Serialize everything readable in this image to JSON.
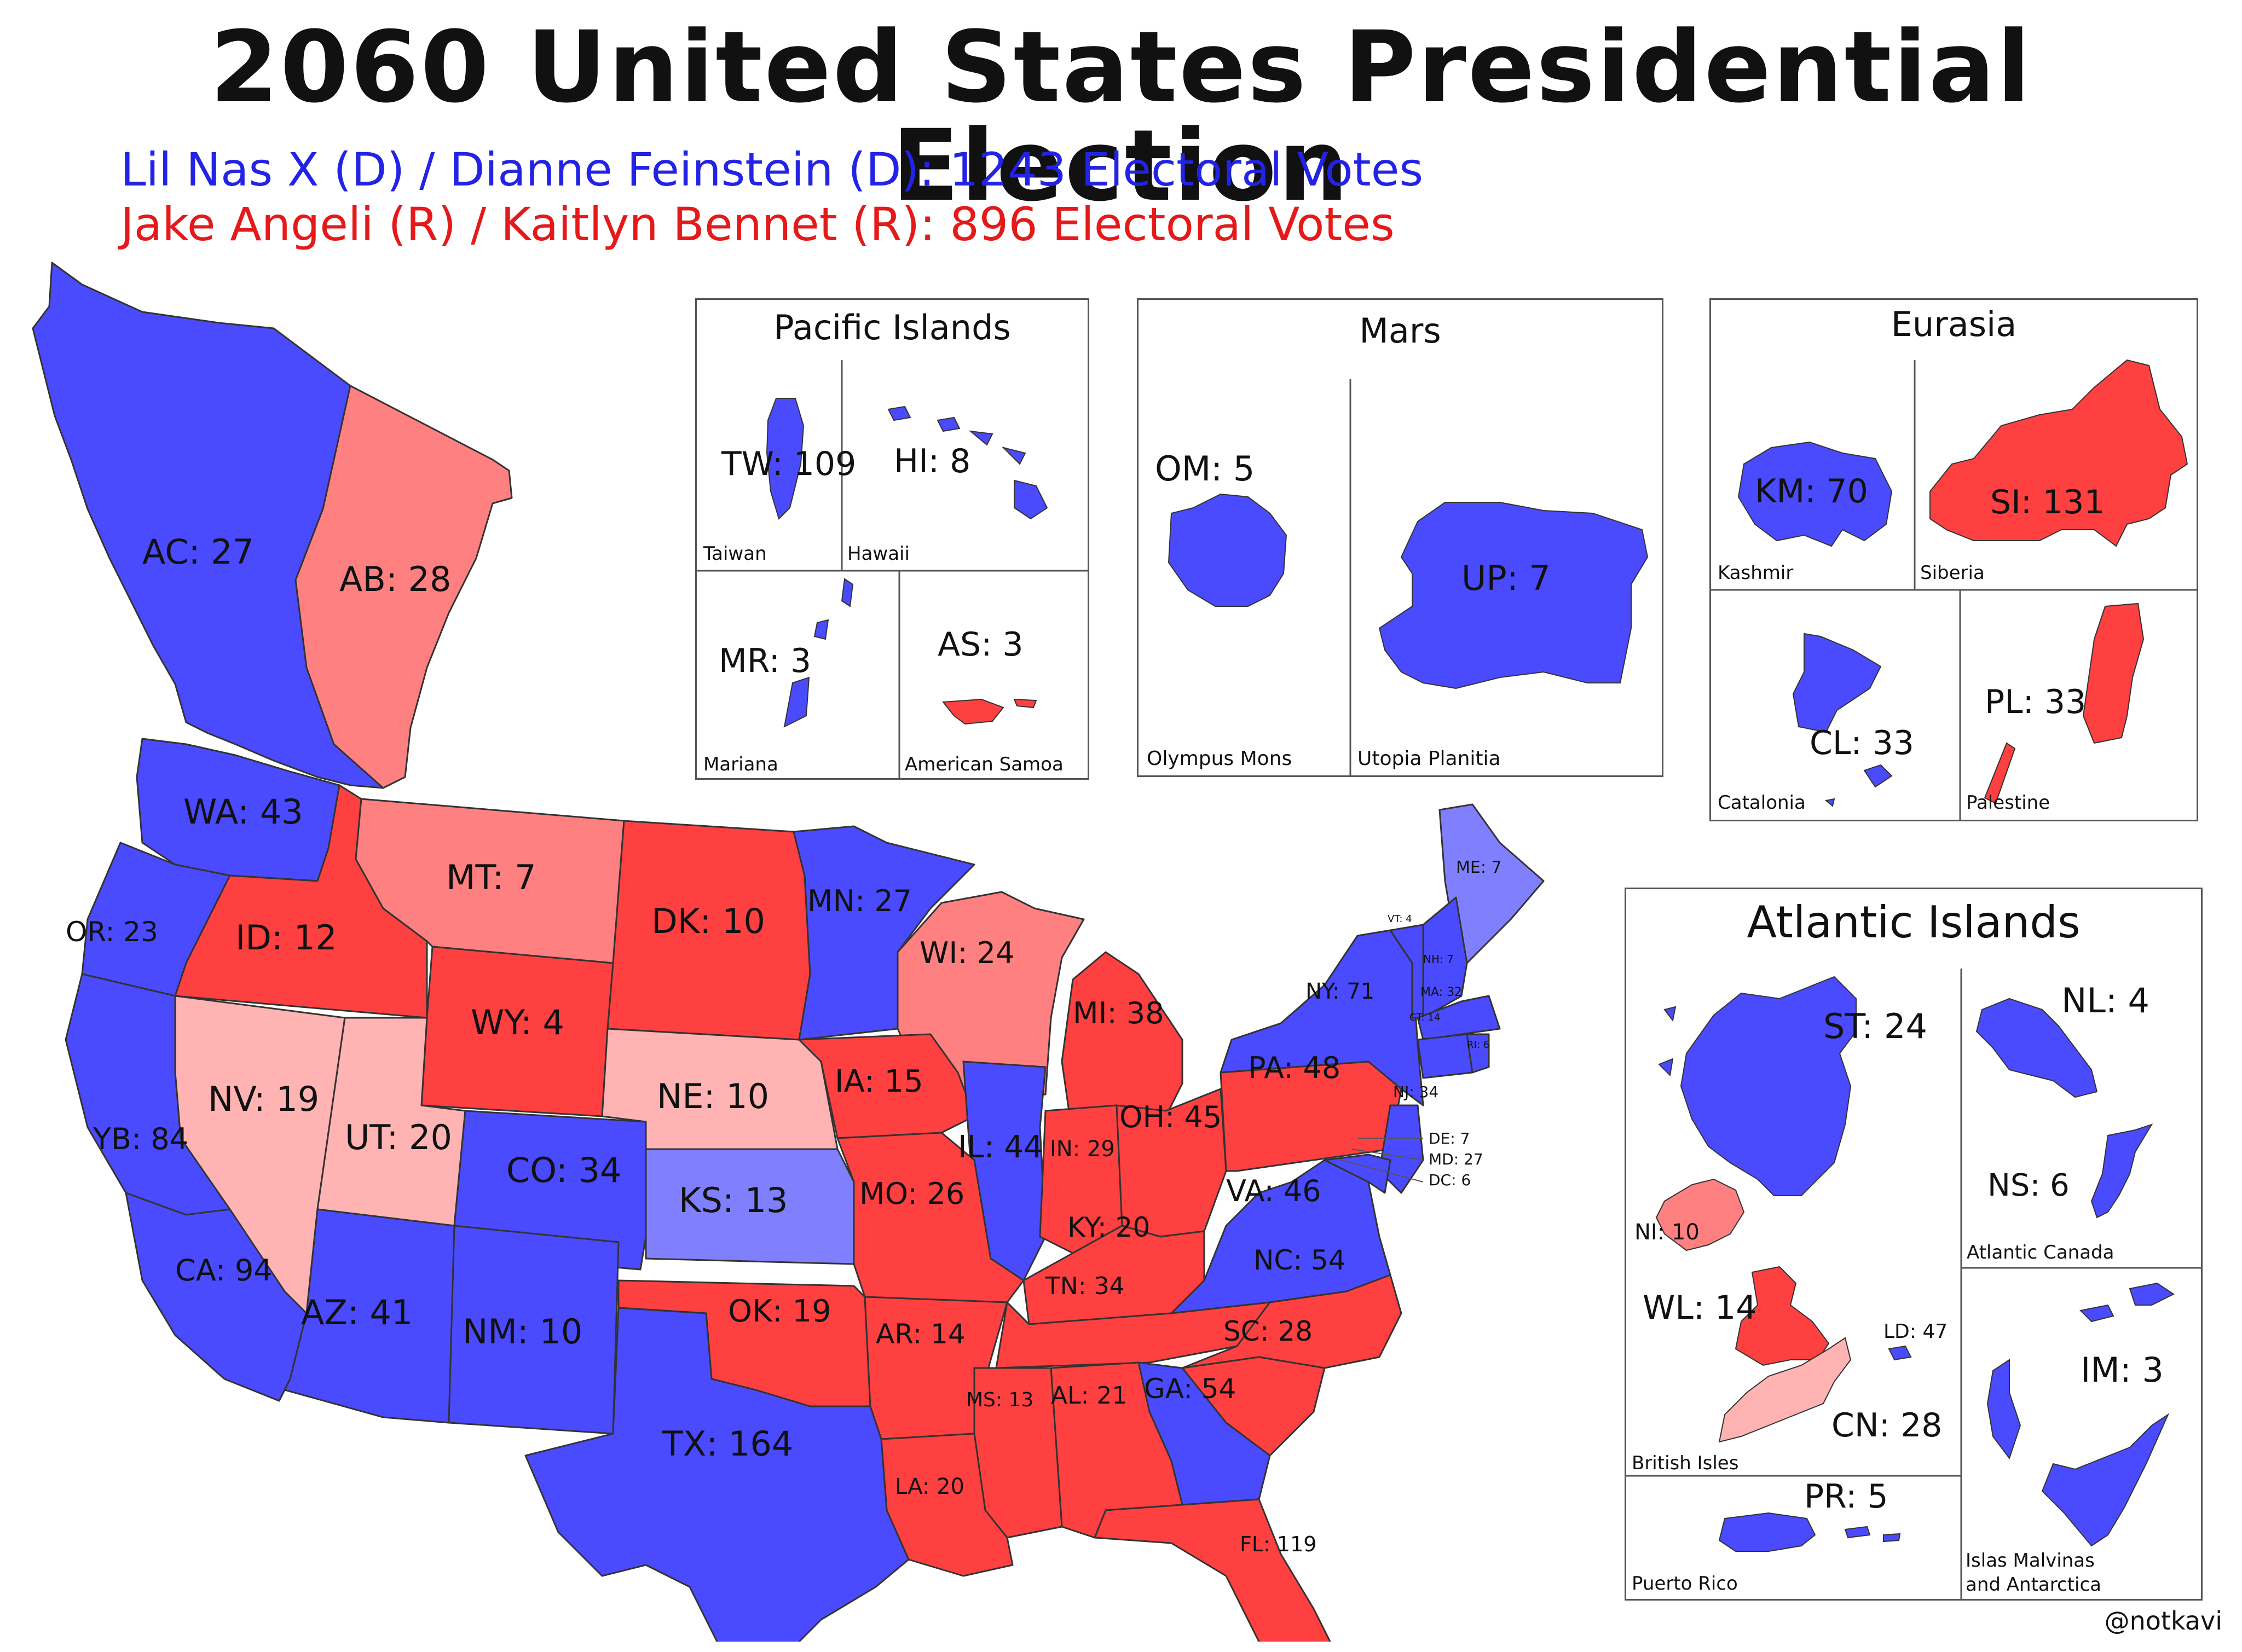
{
  "title": "2060 United States Presidential Election",
  "candidates": {
    "dem": "Lil Nas X (D) / Dianne Feinstein (D): 1243 Electoral Votes",
    "rep": "Jake Angeli (R) / Kaitlyn Bennet (R): 896 Electoral Votes"
  },
  "colors": {
    "dem_strong": "#4a4aff",
    "dem_lean": "#8080ff",
    "rep_strong": "#ff4040",
    "rep_lean": "#ff8080",
    "rep_tilt": "#ffb3b3",
    "border": "#333333"
  },
  "states": [
    {
      "abbr": "AC",
      "votes": 27,
      "label": "AC: 27"
    },
    {
      "abbr": "AB",
      "votes": 28,
      "label": "AB: 28"
    },
    {
      "abbr": "WA",
      "votes": 43,
      "label": "WA: 43"
    },
    {
      "abbr": "OR",
      "votes": 23,
      "label": "OR: 23"
    },
    {
      "abbr": "ID",
      "votes": 12,
      "label": "ID: 12"
    },
    {
      "abbr": "MT",
      "votes": 7,
      "label": "MT: 7"
    },
    {
      "abbr": "DK",
      "votes": 10,
      "label": "DK: 10"
    },
    {
      "abbr": "MN",
      "votes": 27,
      "label": "MN: 27"
    },
    {
      "abbr": "WI",
      "votes": 24,
      "label": "WI: 24"
    },
    {
      "abbr": "MI",
      "votes": 38,
      "label": "MI: 38"
    },
    {
      "abbr": "WY",
      "votes": 4,
      "label": "WY: 4"
    },
    {
      "abbr": "NV",
      "votes": 19,
      "label": "NV: 19"
    },
    {
      "abbr": "UT",
      "votes": 20,
      "label": "UT: 20"
    },
    {
      "abbr": "YB",
      "votes": 84,
      "label": "YB: 84"
    },
    {
      "abbr": "CA",
      "votes": 94,
      "label": "CA: 94"
    },
    {
      "abbr": "CO",
      "votes": 34,
      "label": "CO: 34"
    },
    {
      "abbr": "NE",
      "votes": 10,
      "label": "NE: 10"
    },
    {
      "abbr": "KS",
      "votes": 13,
      "label": "KS: 13"
    },
    {
      "abbr": "IA",
      "votes": 15,
      "label": "IA: 15"
    },
    {
      "abbr": "IL",
      "votes": 44,
      "label": "IL: 44"
    },
    {
      "abbr": "IN",
      "votes": 29,
      "label": "IN: 29"
    },
    {
      "abbr": "OH",
      "votes": 45,
      "label": "OH: 45"
    },
    {
      "abbr": "PA",
      "votes": 48,
      "label": "PA: 48"
    },
    {
      "abbr": "NY",
      "votes": 71,
      "label": "NY: 71"
    },
    {
      "abbr": "MO",
      "votes": 26,
      "label": "MO: 26"
    },
    {
      "abbr": "KY",
      "votes": 20,
      "label": "KY: 20"
    },
    {
      "abbr": "VA",
      "votes": 46,
      "label": "VA: 46"
    },
    {
      "abbr": "AZ",
      "votes": 41,
      "label": "AZ: 41"
    },
    {
      "abbr": "NM",
      "votes": 10,
      "label": "NM: 10"
    },
    {
      "abbr": "OK",
      "votes": 19,
      "label": "OK: 19"
    },
    {
      "abbr": "AR",
      "votes": 14,
      "label": "AR: 14"
    },
    {
      "abbr": "TN",
      "votes": 34,
      "label": "TN: 34"
    },
    {
      "abbr": "NC",
      "votes": 54,
      "label": "NC: 54"
    },
    {
      "abbr": "SC",
      "votes": 28,
      "label": "SC: 28"
    },
    {
      "abbr": "GA",
      "votes": 54,
      "label": "GA: 54"
    },
    {
      "abbr": "AL",
      "votes": 21,
      "label": "AL: 21"
    },
    {
      "abbr": "MS",
      "votes": 13,
      "label": "MS: 13"
    },
    {
      "abbr": "TX",
      "votes": 164,
      "label": "TX: 164"
    },
    {
      "abbr": "LA",
      "votes": 20,
      "label": "LA: 20"
    },
    {
      "abbr": "FL",
      "votes": 119,
      "label": "FL: 119"
    },
    {
      "abbr": "ME",
      "votes": 7,
      "label": "ME: 7"
    },
    {
      "abbr": "VT",
      "votes": 4,
      "label": "VT: 4"
    },
    {
      "abbr": "NH",
      "votes": 7,
      "label": "NH: 7"
    },
    {
      "abbr": "MA",
      "votes": 32,
      "label": "MA: 32"
    },
    {
      "abbr": "CT",
      "votes": 14,
      "label": "CT: 14"
    },
    {
      "abbr": "RI",
      "votes": 6,
      "label": "RI: 6"
    },
    {
      "abbr": "NJ",
      "votes": 34,
      "label": "NJ: 34"
    },
    {
      "abbr": "DE",
      "votes": 7,
      "label": "DE: 7"
    },
    {
      "abbr": "MD",
      "votes": 27,
      "label": "MD: 27"
    },
    {
      "abbr": "DC",
      "votes": 6,
      "label": "DC: 6"
    }
  ],
  "insets": {
    "pacific": {
      "title": "Pacific Islands",
      "regions": [
        {
          "name": "Taiwan",
          "label": "TW: 109"
        },
        {
          "name": "Hawaii",
          "label": "HI: 8"
        },
        {
          "name": "Mariana",
          "label": "MR: 3"
        },
        {
          "name": "American Samoa",
          "label": "AS: 3"
        }
      ]
    },
    "mars": {
      "title": "Mars",
      "regions": [
        {
          "name": "Olympus Mons",
          "label": "OM: 5"
        },
        {
          "name": "Utopia Planitia",
          "label": "UP: 7"
        }
      ]
    },
    "eurasia": {
      "title": "Eurasia",
      "regions": [
        {
          "name": "Kashmir",
          "label": "KM: 70"
        },
        {
          "name": "Siberia",
          "label": "SI: 131"
        },
        {
          "name": "Catalonia",
          "label": "CL: 33"
        },
        {
          "name": "Palestine",
          "label": "PL: 33"
        }
      ]
    },
    "atlantic": {
      "title": "Atlantic Islands",
      "regions": [
        {
          "name": "British Isles",
          "labels": [
            "ST: 24",
            "NI: 10",
            "WL: 14",
            "LD: 47",
            "CN: 28"
          ]
        },
        {
          "name": "Atlantic Canada",
          "labels": [
            "NL: 4",
            "NS: 6"
          ]
        },
        {
          "name": "Puerto Rico",
          "labels": [
            "PR: 5"
          ]
        },
        {
          "name": "Islas Malvinas and Antarctica",
          "labels": [
            "IM: 3"
          ]
        }
      ]
    }
  },
  "credit": "@notkavi"
}
